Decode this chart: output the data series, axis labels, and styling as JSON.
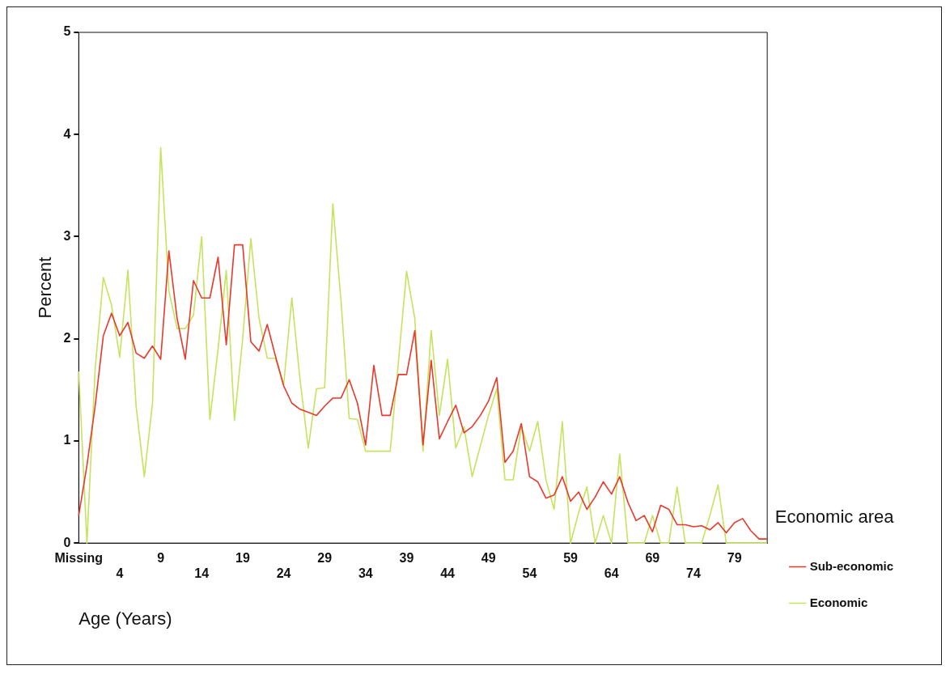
{
  "chart_data": {
    "type": "line",
    "xlabel": "Age (Years)",
    "ylabel": "Percent",
    "legend_title": "Economic area",
    "legend": "right",
    "categories": [
      "Missing",
      null,
      null,
      null,
      null,
      "4",
      null,
      null,
      null,
      null,
      "9",
      null,
      null,
      null,
      null,
      "14",
      null,
      null,
      null,
      null,
      "19",
      null,
      null,
      null,
      null,
      "24",
      null,
      null,
      null,
      null,
      "29",
      null,
      null,
      null,
      null,
      "34",
      null,
      null,
      null,
      null,
      "39",
      null,
      null,
      null,
      null,
      "44",
      null,
      null,
      null,
      null,
      "49",
      null,
      null,
      null,
      null,
      "54",
      null,
      null,
      null,
      null,
      "59",
      null,
      null,
      null,
      null,
      "64",
      null,
      null,
      null,
      null,
      "69",
      null,
      null,
      null,
      null,
      "74",
      null,
      null,
      null,
      null,
      "79",
      null,
      null,
      null,
      null
    ],
    "series": [
      {
        "name": "Sub-economic",
        "color": "#e8392c",
        "values": [
          0.27,
          0.76,
          1.34,
          2.03,
          2.25,
          2.03,
          2.16,
          1.86,
          1.81,
          1.93,
          1.8,
          2.86,
          2.2,
          1.8,
          2.57,
          2.4,
          2.4,
          2.8,
          1.94,
          2.92,
          2.92,
          1.97,
          1.88,
          2.14,
          1.83,
          1.54,
          1.37,
          1.31,
          1.28,
          1.25,
          1.34,
          1.42,
          1.42,
          1.6,
          1.37,
          0.96,
          1.74,
          1.25,
          1.25,
          1.65,
          1.65,
          2.08,
          0.96,
          1.79,
          1.02,
          1.19,
          1.35,
          1.08,
          1.14,
          1.25,
          1.39,
          1.62,
          0.79,
          0.9,
          1.17,
          0.65,
          0.6,
          0.44,
          0.47,
          0.65,
          0.41,
          0.5,
          0.33,
          0.45,
          0.6,
          0.48,
          0.65,
          0.4,
          0.22,
          0.27,
          0.11,
          0.37,
          0.33,
          0.18,
          0.18,
          0.16,
          0.17,
          0.13,
          0.2,
          0.1,
          0.2,
          0.24,
          0.12,
          0.04,
          0.04
        ]
      },
      {
        "name": "Economic",
        "color": "#c5e35c",
        "values": [
          1.68,
          0,
          1.7,
          2.6,
          2.33,
          1.82,
          2.67,
          1.34,
          0.65,
          1.37,
          3.87,
          2.47,
          2.1,
          2.1,
          2.23,
          3.0,
          1.21,
          1.9,
          2.67,
          1.2,
          2.0,
          2.98,
          2.2,
          1.81,
          1.81,
          1.55,
          2.4,
          1.6,
          0.93,
          1.51,
          1.52,
          3.32,
          2.37,
          1.22,
          1.21,
          0.9,
          0.9,
          0.9,
          0.9,
          1.77,
          2.66,
          2.2,
          0.9,
          2.08,
          1.25,
          1.8,
          0.93,
          1.14,
          0.65,
          0.95,
          1.25,
          1.51,
          0.62,
          0.62,
          1.14,
          0.9,
          1.19,
          0.62,
          0.33,
          1.19,
          0,
          0.3,
          0.55,
          0,
          0.27,
          0,
          0.87,
          0,
          0,
          0,
          0.27,
          0,
          0,
          0.55,
          0,
          0,
          0,
          0.27,
          0.57,
          0,
          0,
          0,
          0,
          0,
          0
        ]
      }
    ],
    "ylim": [
      0,
      5
    ],
    "yticks": [
      0,
      1,
      2,
      3,
      4,
      5
    ],
    "grid": false,
    "marker": "none",
    "line_style": "solid"
  }
}
